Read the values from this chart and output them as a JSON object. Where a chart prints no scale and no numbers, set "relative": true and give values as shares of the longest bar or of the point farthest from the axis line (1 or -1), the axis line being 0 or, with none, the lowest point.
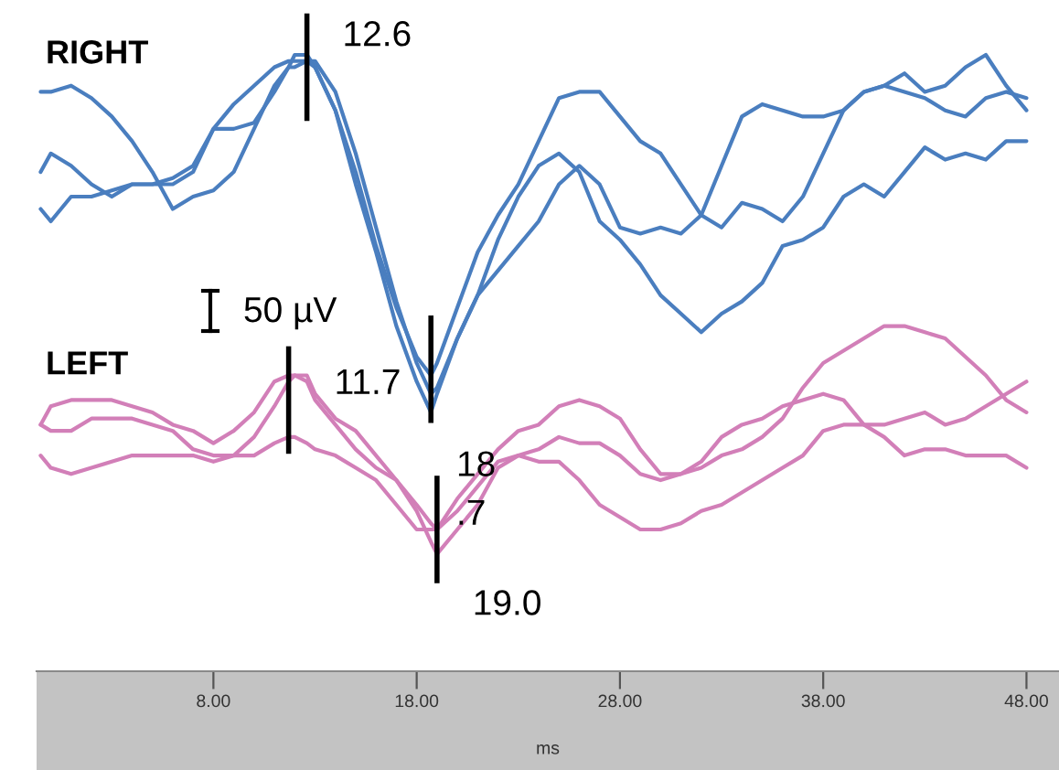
{
  "chart_data": {
    "type": "line",
    "relative": true,
    "xlabel": "ms",
    "xlim": [
      -0.7,
      49.6
    ],
    "xticks": [
      {
        "value": 8,
        "label": "8.00"
      },
      {
        "value": 18,
        "label": "18.00"
      },
      {
        "value": 28,
        "label": "28.00"
      },
      {
        "value": 38,
        "label": "38.00"
      },
      {
        "value": 48,
        "label": "48.00"
      }
    ],
    "x": [
      -0.5,
      0,
      1,
      2,
      3,
      4,
      5,
      6,
      7,
      8,
      9,
      10,
      11,
      11.7,
      12,
      12.6,
      13,
      14,
      15,
      16,
      17,
      18,
      18.7,
      19,
      20,
      21,
      22,
      23,
      24,
      25,
      26,
      27,
      28,
      29,
      30,
      31,
      32,
      33,
      34,
      35,
      36,
      37,
      38,
      39,
      40,
      41,
      42,
      43,
      44,
      45,
      46,
      47,
      48
    ],
    "series": [
      {
        "color": "#4a7ebf",
        "values": [
          0.94,
          0.94,
          0.95,
          0.93,
          0.9,
          0.86,
          0.81,
          0.75,
          0.77,
          0.78,
          0.81,
          0.88,
          0.95,
          0.98,
          1,
          1,
          0.98,
          0.91,
          0.81,
          0.69,
          0.59,
          0.51,
          0.48,
          0.5,
          0.59,
          0.68,
          0.74,
          0.79,
          0.86,
          0.93,
          0.94,
          0.94,
          0.9,
          0.86,
          0.84,
          0.79,
          0.74,
          0.72,
          0.76,
          0.75,
          0.73,
          0.77,
          0.84,
          0.91,
          0.94,
          0.95,
          0.97,
          0.94,
          0.95,
          0.98,
          1,
          0.95,
          0.91
        ]
      },
      {
        "color": "#4a7ebf",
        "values": [
          0.81,
          0.84,
          0.82,
          0.79,
          0.77,
          0.79,
          0.79,
          0.79,
          0.81,
          0.88,
          0.88,
          0.89,
          0.94,
          0.98,
          0.98,
          0.99,
          0.99,
          0.94,
          0.84,
          0.72,
          0.6,
          0.5,
          0.45,
          0.46,
          0.54,
          0.61,
          0.65,
          0.69,
          0.73,
          0.79,
          0.82,
          0.79,
          0.72,
          0.71,
          0.72,
          0.71,
          0.74,
          0.82,
          0.9,
          0.92,
          0.91,
          0.9,
          0.9,
          0.91,
          0.94,
          0.95,
          0.94,
          0.93,
          0.91,
          0.9,
          0.93,
          0.94,
          0.93
        ]
      },
      {
        "color": "#4a7ebf",
        "values": [
          0.75,
          0.73,
          0.77,
          0.77,
          0.78,
          0.79,
          0.79,
          0.8,
          0.82,
          0.88,
          0.92,
          0.95,
          0.98,
          0.99,
          0.99,
          0.99,
          0.98,
          0.91,
          0.79,
          0.68,
          0.56,
          0.47,
          0.42,
          0.45,
          0.54,
          0.61,
          0.7,
          0.77,
          0.82,
          0.84,
          0.81,
          0.73,
          0.7,
          0.66,
          0.61,
          0.58,
          0.55,
          0.58,
          0.6,
          0.63,
          0.69,
          0.7,
          0.72,
          0.77,
          0.79,
          0.77,
          0.81,
          0.85,
          0.83,
          0.84,
          0.83,
          0.86,
          0.86
        ]
      },
      {
        "color": "#d27fb8",
        "values": [
          0.4,
          0.43,
          0.44,
          0.44,
          0.44,
          0.43,
          0.42,
          0.4,
          0.39,
          0.37,
          0.39,
          0.42,
          0.47,
          0.48,
          0.48,
          0.48,
          0.45,
          0.41,
          0.39,
          0.35,
          0.31,
          0.27,
          0.24,
          0.23,
          0.28,
          0.32,
          0.36,
          0.39,
          0.4,
          0.43,
          0.44,
          0.43,
          0.41,
          0.36,
          0.32,
          0.32,
          0.34,
          0.38,
          0.4,
          0.41,
          0.43,
          0.44,
          0.45,
          0.44,
          0.4,
          0.38,
          0.35,
          0.36,
          0.36,
          0.35,
          0.35,
          0.35,
          0.33
        ]
      },
      {
        "color": "#d27fb8",
        "values": [
          0.4,
          0.39,
          0.39,
          0.41,
          0.41,
          0.41,
          0.4,
          0.39,
          0.36,
          0.35,
          0.35,
          0.38,
          0.43,
          0.47,
          0.48,
          0.47,
          0.44,
          0.4,
          0.36,
          0.33,
          0.31,
          0.26,
          0.21,
          0.19,
          0.23,
          0.27,
          0.33,
          0.35,
          0.34,
          0.34,
          0.31,
          0.27,
          0.25,
          0.23,
          0.23,
          0.24,
          0.26,
          0.27,
          0.29,
          0.31,
          0.33,
          0.35,
          0.39,
          0.4,
          0.4,
          0.4,
          0.41,
          0.42,
          0.4,
          0.41,
          0.43,
          0.45,
          0.47
        ]
      },
      {
        "color": "#d27fb8",
        "values": [
          0.35,
          0.33,
          0.32,
          0.33,
          0.34,
          0.35,
          0.35,
          0.35,
          0.35,
          0.34,
          0.35,
          0.35,
          0.37,
          0.38,
          0.38,
          0.37,
          0.36,
          0.35,
          0.33,
          0.31,
          0.27,
          0.23,
          0.23,
          0.23,
          0.26,
          0.3,
          0.34,
          0.35,
          0.36,
          0.38,
          0.37,
          0.37,
          0.35,
          0.32,
          0.31,
          0.32,
          0.33,
          0.35,
          0.36,
          0.38,
          0.41,
          0.46,
          0.5,
          0.52,
          0.54,
          0.56,
          0.56,
          0.55,
          0.54,
          0.51,
          0.48,
          0.44,
          0.42
        ]
      }
    ],
    "annotations": [
      "RIGHT",
      "LEFT",
      "50 µV",
      {
        "text": "12.6",
        "x": 12.6,
        "y": 0.98
      },
      {
        "text": "11.7",
        "x": 11.7,
        "y": 0.44
      },
      {
        "text": "18\n.7",
        "x": 18.7,
        "y": 0.49
      },
      {
        "text": "19.0",
        "x": 19.0,
        "y": 0.23
      }
    ]
  }
}
